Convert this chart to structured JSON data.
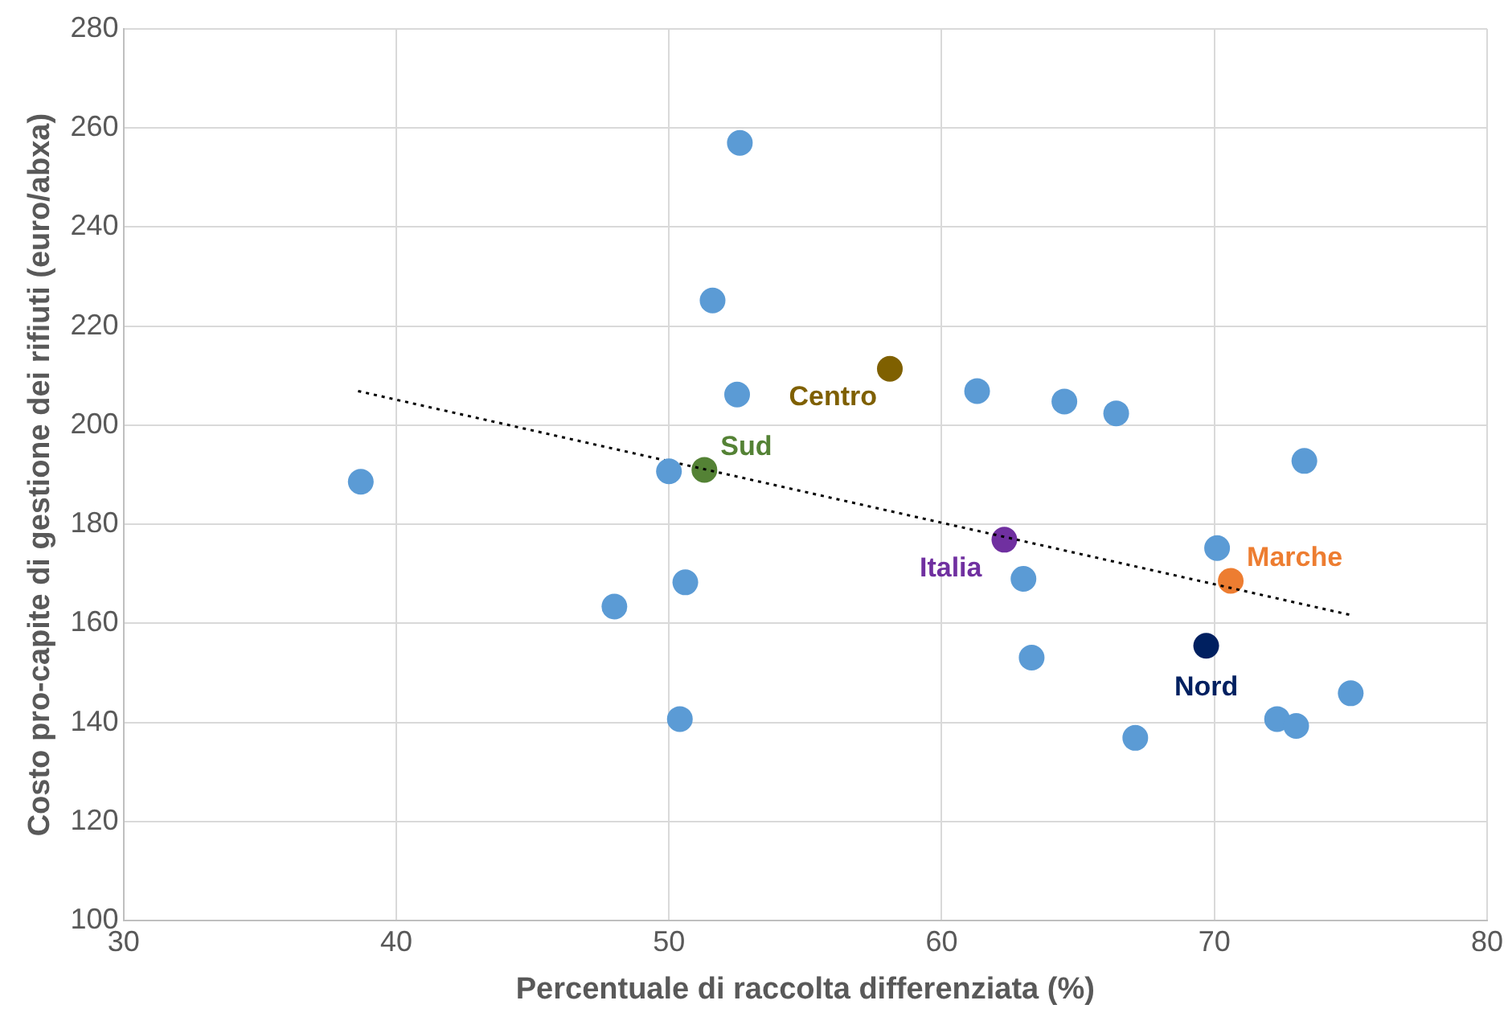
{
  "chart_data": {
    "type": "scatter",
    "xlabel": "Percentuale di raccolta differenziata (%)",
    "ylabel": "Costo pro-capite di gestione dei rifiuti (euro/abxa)",
    "xlim": [
      30,
      80
    ],
    "xticks": [
      30,
      40,
      50,
      60,
      70,
      80
    ],
    "ylim": [
      100,
      280
    ],
    "yticks": [
      100,
      120,
      140,
      160,
      180,
      200,
      220,
      240,
      260,
      280
    ],
    "grid": true,
    "legend": false,
    "marker": "circle",
    "series": [
      {
        "color": "#5b9bd5",
        "x": [
          38.7,
          52.6,
          51.6,
          52.5,
          50.0,
          48.0,
          50.6,
          50.4,
          61.3,
          64.5,
          66.4,
          73.3,
          70.1,
          63.0,
          63.3,
          67.1,
          72.3,
          73.0,
          75.0
        ],
        "values": [
          188.6,
          257,
          225.2,
          206.2,
          190.7,
          163.4,
          168.3,
          140.7,
          206.9,
          204.8,
          202.4,
          192.8,
          175.2,
          169.0,
          153.1,
          136.9,
          140.7,
          139.3,
          145.9
        ]
      },
      {
        "type": "line",
        "color": "#000000",
        "line_style": "dotted",
        "marker": "none",
        "x": [
          38.6,
          75.0
        ],
        "values": [
          206.9,
          161.7
        ]
      },
      {
        "name": "Centro",
        "color": "#7f6000",
        "x": [
          58.1
        ],
        "values": [
          211.4
        ]
      },
      {
        "name": "Sud",
        "color": "#548235",
        "x": [
          51.3
        ],
        "values": [
          191.0
        ]
      },
      {
        "name": "Italia",
        "color": "#7030a0",
        "x": [
          62.3
        ],
        "values": [
          176.9
        ]
      },
      {
        "name": "Marche",
        "color": "#ed7d31",
        "x": [
          70.6
        ],
        "values": [
          168.6
        ]
      },
      {
        "name": "Nord",
        "color": "#002060",
        "x": [
          69.7
        ],
        "values": [
          155.5
        ]
      }
    ]
  }
}
